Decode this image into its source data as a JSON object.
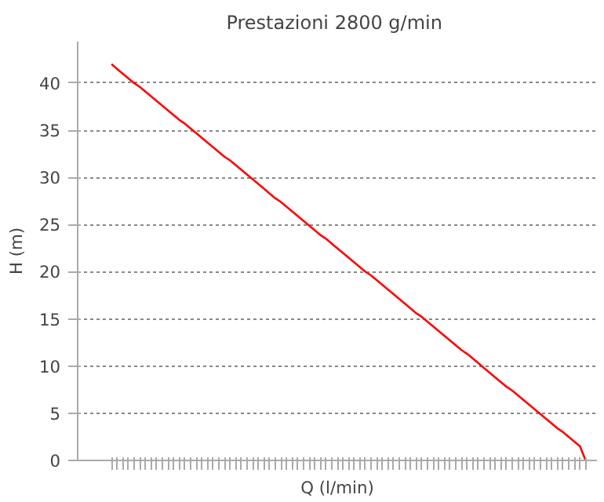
{
  "chart_data": {
    "type": "line",
    "title": "Prestazioni  2800 g/min",
    "xlabel": "Q (l/min)",
    "ylabel": "H (m)",
    "categories": [
      null,
      null,
      null,
      null,
      null,
      null,
      null,
      null,
      null,
      null,
      null,
      null,
      null,
      null,
      null,
      null,
      null,
      null,
      null,
      null,
      null,
      null,
      null,
      null,
      null,
      null,
      null,
      null,
      null,
      null,
      null,
      null,
      null,
      null,
      null,
      null,
      null,
      null,
      null,
      null,
      null,
      null,
      null,
      null,
      null,
      null,
      null,
      null,
      null,
      null,
      null,
      null,
      null,
      null,
      null,
      null,
      null,
      null,
      null,
      null,
      null,
      null,
      null,
      null,
      null,
      null,
      null,
      null,
      null,
      null,
      null,
      null,
      null,
      null,
      null,
      null,
      null,
      null,
      null,
      null,
      null,
      null,
      null,
      null,
      null
    ],
    "series": [
      {
        "color": "#ff0000",
        "values": [
          42.0,
          41.5,
          41.0,
          40.5,
          40.0,
          39.6,
          39.1,
          38.6,
          38.1,
          37.6,
          37.1,
          36.6,
          36.1,
          35.7,
          35.2,
          34.7,
          34.2,
          33.7,
          33.2,
          32.7,
          32.2,
          31.8,
          31.3,
          30.8,
          30.3,
          29.8,
          29.3,
          28.8,
          28.3,
          27.8,
          27.4,
          26.9,
          26.4,
          25.9,
          25.4,
          24.9,
          24.4,
          23.9,
          23.5,
          23.0,
          22.5,
          22.0,
          21.5,
          21.0,
          20.5,
          20.0,
          19.6,
          19.1,
          18.6,
          18.1,
          17.6,
          17.1,
          16.6,
          16.1,
          15.6,
          15.2,
          14.7,
          14.2,
          13.7,
          13.2,
          12.7,
          12.2,
          11.7,
          11.3,
          10.8,
          10.3,
          9.8,
          9.3,
          8.8,
          8.3,
          7.8,
          7.4,
          6.9,
          6.4,
          5.9,
          5.4,
          4.9,
          4.4,
          3.9,
          3.4,
          3.0,
          2.5,
          2.0,
          1.5,
          0
        ]
      }
    ],
    "ylim": [
      0,
      44.4
    ],
    "yticks": [
      0,
      5,
      10,
      15,
      20,
      25,
      30,
      35,
      40
    ],
    "grid": "y",
    "marker": "none",
    "line_style": "solid"
  }
}
